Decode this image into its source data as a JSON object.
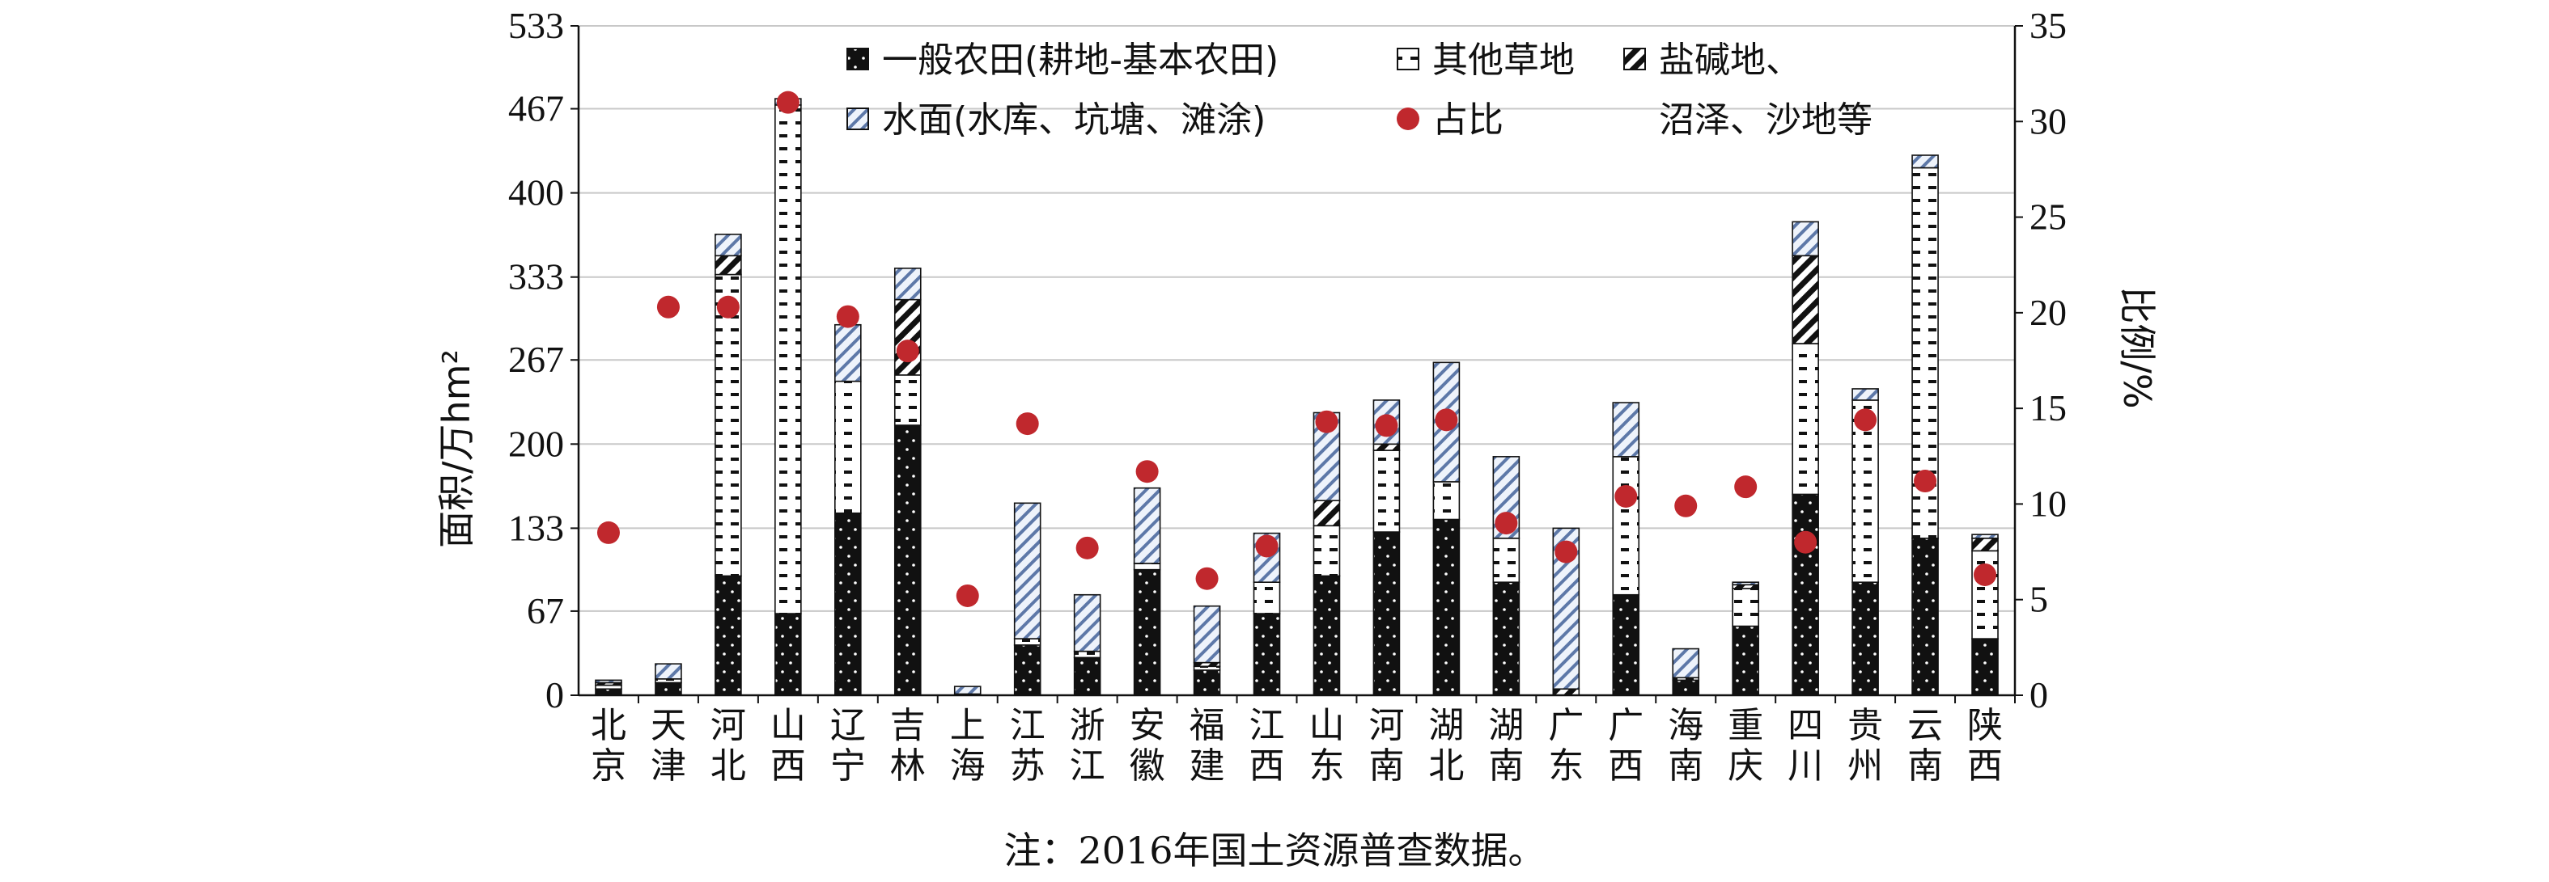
{
  "chart_data": {
    "type": "bar",
    "stacked": true,
    "categories": [
      "北京",
      "天津",
      "河北",
      "山西",
      "辽宁",
      "吉林",
      "上海",
      "江苏",
      "浙江",
      "安徽",
      "福建",
      "江西",
      "山东",
      "河南",
      "湖北",
      "湖南",
      "广东",
      "广西",
      "海南",
      "重庆",
      "四川",
      "贵州",
      "云南",
      "陕西"
    ],
    "series": [
      {
        "name": "一般农田(耕地-基本农田)",
        "pattern": "dotted-black",
        "values": [
          5,
          10,
          95,
          65,
          145,
          215,
          0,
          40,
          30,
          100,
          20,
          65,
          95,
          130,
          140,
          90,
          0,
          80,
          12,
          55,
          160,
          90,
          125,
          45
        ]
      },
      {
        "name": "其他草地",
        "pattern": "dashed-white",
        "values": [
          3,
          3,
          240,
          405,
          105,
          40,
          1,
          5,
          5,
          5,
          3,
          25,
          40,
          65,
          30,
          35,
          0,
          110,
          2,
          30,
          120,
          145,
          295,
          70
        ]
      },
      {
        "name": "盐碱地、沼泽、沙地等",
        "pattern": "diagonal-black",
        "values": [
          2,
          0,
          15,
          0,
          0,
          60,
          0,
          0,
          0,
          0,
          3,
          0,
          20,
          5,
          0,
          0,
          5,
          0,
          0,
          3,
          70,
          0,
          0,
          10
        ]
      },
      {
        "name": "水面(水库、坑塘、滩涂)",
        "pattern": "hatch-blue",
        "values": [
          2,
          12,
          17,
          5,
          45,
          25,
          6,
          108,
          45,
          60,
          45,
          39,
          70,
          35,
          95,
          65,
          128,
          43,
          23,
          2,
          27,
          9,
          10,
          3
        ]
      }
    ],
    "ratio_series": {
      "name": "占比",
      "color": "#c0282d",
      "values": [
        8.5,
        20.3,
        20.3,
        31.0,
        19.8,
        18.0,
        5.2,
        14.2,
        7.7,
        11.7,
        6.1,
        7.8,
        14.3,
        14.1,
        14.4,
        9.0,
        7.5,
        10.4,
        9.9,
        10.9,
        8.0,
        14.4,
        11.2,
        6.3
      ]
    },
    "y_left": {
      "label": "面积/万hm²",
      "ticks": [
        "0",
        "67",
        "133",
        "200",
        "267",
        "333",
        "400",
        "467",
        "533"
      ],
      "min": 0,
      "max": 533
    },
    "y_right": {
      "label": "比例/%",
      "ticks": [
        "0",
        "5",
        "10",
        "15",
        "20",
        "25",
        "30",
        "35"
      ],
      "min": 0,
      "max": 35
    },
    "grid": true,
    "legend_position": "top-inside",
    "note": "注：2016年国土资源普查数据。"
  }
}
